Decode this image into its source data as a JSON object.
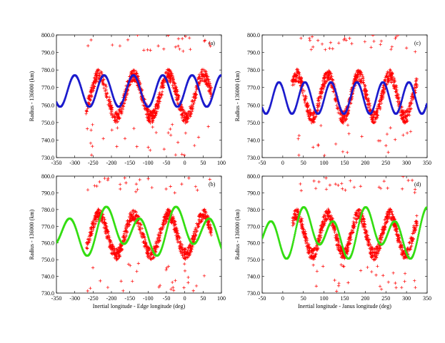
{
  "chart_data": [
    {
      "type": "scatter",
      "panel_label": "(a)",
      "xlabel": "",
      "ylabel": "Radius - 136000 (km)",
      "xlim": [
        -350,
        100
      ],
      "ylim": [
        730,
        800
      ],
      "xticks": [
        "-350",
        "-300",
        "-250",
        "-200",
        "-150",
        "-100",
        "-50",
        "0",
        "50",
        "100"
      ],
      "yticks": [
        "730.0",
        "740.0",
        "750.0",
        "760.0",
        "770.0",
        "780.0",
        "790.0",
        "800.0"
      ],
      "model": {
        "kind": "sine",
        "color": "#1a1acc",
        "mean": 768,
        "amplitude": 9,
        "period": 80,
        "phase": -320,
        "crest_mod": 0
      },
      "observations": {
        "color": "#ff0000",
        "phase": -240,
        "period": 95,
        "mean": 765,
        "amplitude": 12,
        "outlier_seed": 11
      }
    },
    {
      "type": "scatter",
      "panel_label": "(c)",
      "xlabel": "",
      "ylabel": "Radius - 136000 (km)",
      "xlim": [
        -50,
        350
      ],
      "ylim": [
        730,
        800
      ],
      "xticks": [
        "-50",
        "0",
        "50",
        "100",
        "150",
        "200",
        "250",
        "300",
        "350"
      ],
      "yticks": [
        "730.0",
        "740.0",
        "750.0",
        "760.0",
        "770.0",
        "780.0",
        "790.0",
        "800.0"
      ],
      "model": {
        "kind": "sine",
        "color": "#1a1acc",
        "mean": 764,
        "amplitude": 9,
        "period": 63,
        "phase": 38,
        "crest_mod": 0
      },
      "observations": {
        "color": "#ff0000",
        "phase": 30,
        "period": 75,
        "mean": 765,
        "amplitude": 12,
        "outlier_seed": 23
      }
    },
    {
      "type": "scatter",
      "panel_label": "(b)",
      "xlabel": "Inertial longitude - Edge longitude (deg)",
      "ylabel": "Radius - 136000 (km)",
      "xlim": [
        -350,
        100
      ],
      "ylim": [
        730,
        800
      ],
      "xticks": [
        "-350",
        "-300",
        "-250",
        "-200",
        "-150",
        "-100",
        "-50",
        "0",
        "50",
        "100"
      ],
      "yticks": [
        "730.0",
        "740.0",
        "750.0",
        "760.0",
        "770.0",
        "780.0",
        "790.0",
        "800.0"
      ],
      "model": {
        "kind": "sine",
        "color": "#33dd11",
        "mean": 767,
        "amplitude": 11,
        "period": 95,
        "phase": -240,
        "crest_mod": 5
      },
      "observations": {
        "color": "#ff0000",
        "phase": -240,
        "period": 95,
        "mean": 765,
        "amplitude": 12,
        "outlier_seed": 37
      }
    },
    {
      "type": "scatter",
      "panel_label": "(d)",
      "xlabel": "Inertial longitude - Janus longitude (deg)",
      "ylabel": "Radius - 136000 (km)",
      "xlim": [
        -50,
        350
      ],
      "ylim": [
        730,
        800
      ],
      "xticks": [
        "-50",
        "0",
        "50",
        "100",
        "150",
        "200",
        "250",
        "300",
        "350"
      ],
      "yticks": [
        "730.0",
        "740.0",
        "750.0",
        "760.0",
        "770.0",
        "780.0",
        "790.0",
        "800.0"
      ],
      "model": {
        "kind": "sine",
        "color": "#33dd11",
        "mean": 766,
        "amplitude": 11,
        "period": 75,
        "phase": 30,
        "crest_mod": 6
      },
      "observations": {
        "color": "#ff0000",
        "phase": 30,
        "period": 75,
        "mean": 765,
        "amplitude": 12,
        "outlier_seed": 53
      }
    }
  ]
}
